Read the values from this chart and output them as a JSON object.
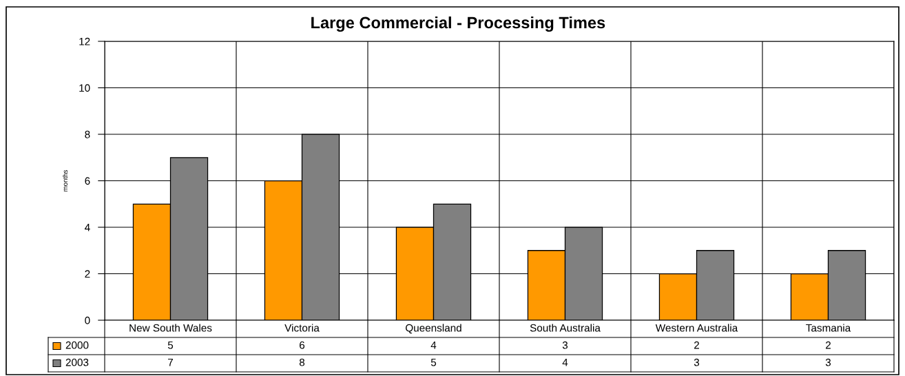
{
  "chart_data": {
    "type": "bar",
    "title": "Large Commercial - Processing Times",
    "ylabel": "months",
    "categories": [
      "New South Wales",
      "Victoria",
      "Queensland",
      "South Australia",
      "Western Australia",
      "Tasmania"
    ],
    "series": [
      {
        "name": "2000",
        "color": "#ff9900",
        "values": [
          5,
          6,
          4,
          3,
          2,
          2
        ]
      },
      {
        "name": "2003",
        "color": "#808080",
        "values": [
          7,
          8,
          5,
          4,
          3,
          3
        ]
      }
    ],
    "ylim": [
      0,
      12
    ],
    "yticks": [
      0,
      2,
      4,
      6,
      8,
      10,
      12
    ],
    "grid": true,
    "legend": "bottom left",
    "data_labels": true
  }
}
